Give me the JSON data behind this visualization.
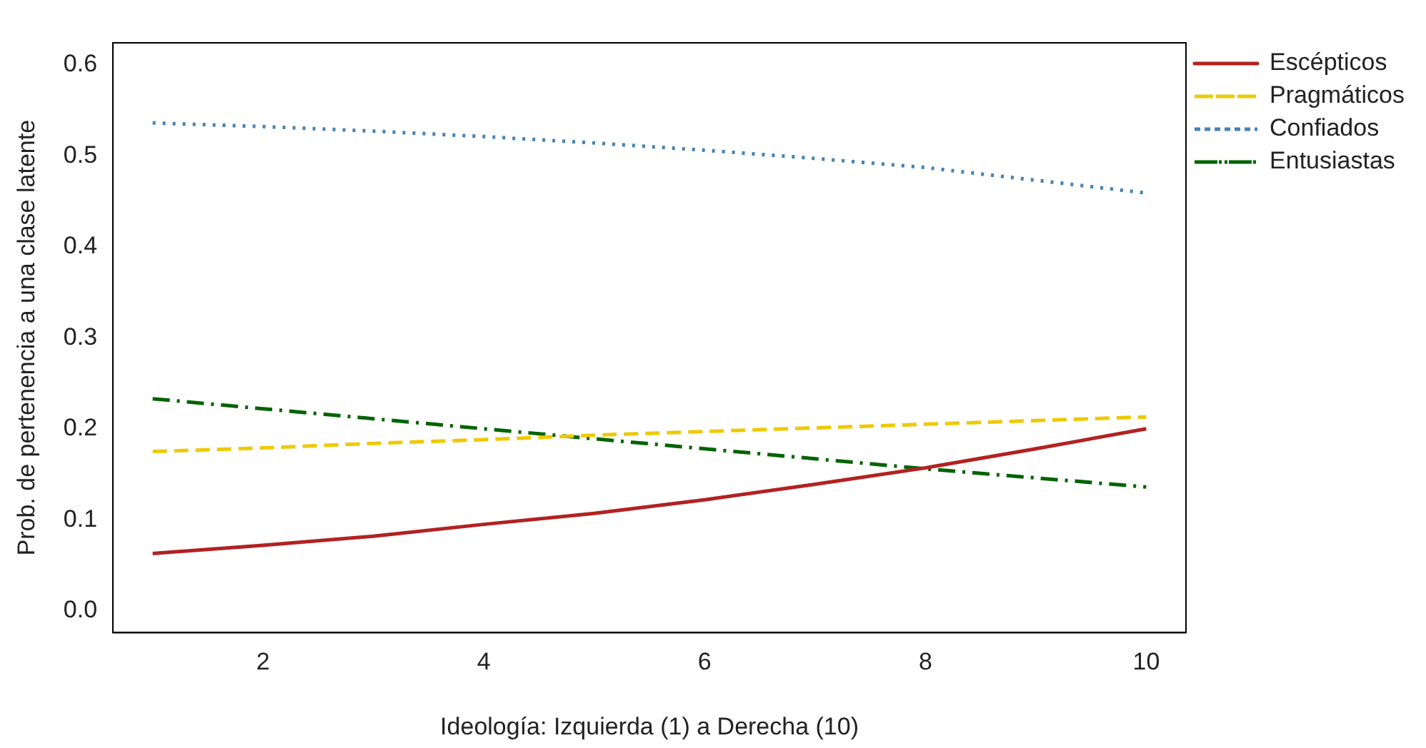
{
  "chart_data": {
    "type": "line",
    "xlabel": "Ideología: Izquierda (1) a Derecha (10)",
    "ylabel": "Prob. de pertenencia a una clase latente",
    "x": [
      1,
      2,
      3,
      4,
      5,
      6,
      7,
      8,
      9,
      10
    ],
    "series": [
      {
        "name": "Escépticos",
        "color": "#b22222",
        "line_style": "solid",
        "values": [
          0.063,
          0.072,
          0.082,
          0.095,
          0.107,
          0.122,
          0.139,
          0.157,
          0.178,
          0.2
        ]
      },
      {
        "name": "Pragmáticos",
        "color": "#eec900",
        "line_style": "dashed",
        "values": [
          0.175,
          0.179,
          0.184,
          0.188,
          0.193,
          0.197,
          0.201,
          0.205,
          0.209,
          0.213
        ]
      },
      {
        "name": "Confiados",
        "color": "#4682b4",
        "line_style": "dotted",
        "values": [
          0.536,
          0.532,
          0.527,
          0.521,
          0.514,
          0.506,
          0.497,
          0.487,
          0.473,
          0.459
        ]
      },
      {
        "name": "Entusiastas",
        "color": "#006400",
        "line_style": "dashdot",
        "values": [
          0.233,
          0.222,
          0.211,
          0.2,
          0.189,
          0.178,
          0.167,
          0.156,
          0.146,
          0.136
        ]
      }
    ],
    "xlim": [
      0.64,
      10.36
    ],
    "xticks": [
      2,
      4,
      6,
      8,
      10
    ],
    "ylim": [
      -0.024,
      0.624
    ],
    "yticks": [
      {
        "value": 0,
        "label": "0.0"
      },
      0.1,
      0.2,
      0.3,
      0.4,
      0.5,
      0.6
    ],
    "grid": false,
    "legend": "top right",
    "marker": "none"
  }
}
